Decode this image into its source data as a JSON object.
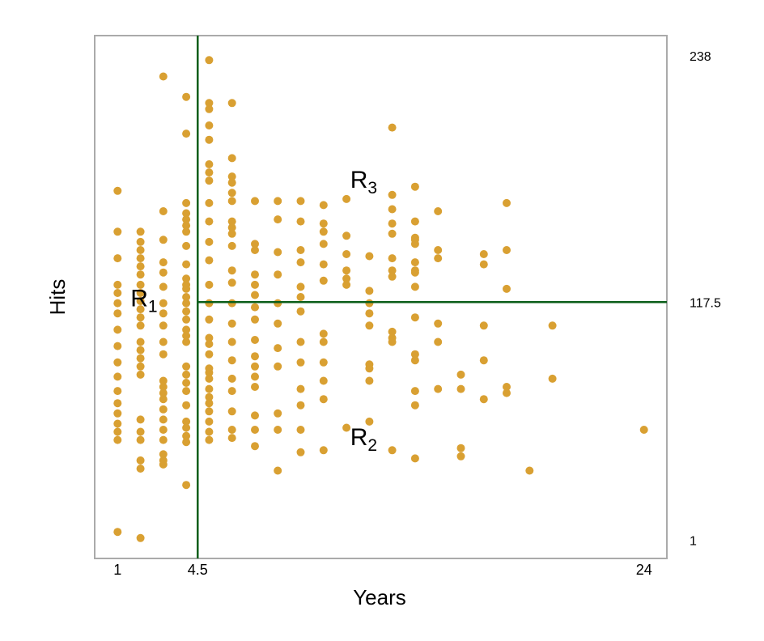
{
  "chart_data": {
    "type": "scatter",
    "xlabel": "Years",
    "ylabel": "Hits",
    "xlim": [
      0,
      25
    ],
    "ylim": [
      -8,
      248
    ],
    "x_ticks": [
      "1",
      "4.5",
      "24"
    ],
    "x_tick_values": [
      1,
      4.5,
      24
    ],
    "right_labels": [
      "238",
      "117.5",
      "1"
    ],
    "right_label_values": [
      238,
      117.5,
      1
    ],
    "splits": {
      "vertical": {
        "x": 4.5,
        "label": "4.5"
      },
      "horizontal": {
        "y": 117.5,
        "x_from": 4.5,
        "label": "117.5"
      }
    },
    "regions": [
      {
        "main": "R",
        "sub": "1",
        "x": 2.2,
        "y": 117
      },
      {
        "main": "R",
        "sub": "3",
        "x": 11.8,
        "y": 175
      },
      {
        "main": "R",
        "sub": "2",
        "x": 11.8,
        "y": 49
      }
    ],
    "colors": {
      "points": "#D9A032",
      "split_lines": "#0B5E1A",
      "frame": "#AAAAAA"
    },
    "points": [
      [
        1,
        172
      ],
      [
        1,
        152
      ],
      [
        1,
        139
      ],
      [
        1,
        126
      ],
      [
        1,
        122
      ],
      [
        1,
        117
      ],
      [
        1,
        112
      ],
      [
        1,
        104
      ],
      [
        1,
        96
      ],
      [
        1,
        88
      ],
      [
        1,
        81
      ],
      [
        1,
        74
      ],
      [
        1,
        68
      ],
      [
        1,
        63
      ],
      [
        1,
        58
      ],
      [
        1,
        54
      ],
      [
        1,
        50
      ],
      [
        1,
        5
      ],
      [
        2,
        152
      ],
      [
        2,
        147
      ],
      [
        2,
        143
      ],
      [
        2,
        139
      ],
      [
        2,
        135
      ],
      [
        2,
        131
      ],
      [
        2,
        126
      ],
      [
        2,
        122
      ],
      [
        2,
        118
      ],
      [
        2,
        114
      ],
      [
        2,
        110
      ],
      [
        2,
        106
      ],
      [
        2,
        98
      ],
      [
        2,
        94
      ],
      [
        2,
        90
      ],
      [
        2,
        86
      ],
      [
        2,
        82
      ],
      [
        2,
        60
      ],
      [
        2,
        54
      ],
      [
        2,
        50
      ],
      [
        2,
        40
      ],
      [
        2,
        36
      ],
      [
        2,
        2
      ],
      [
        3,
        228
      ],
      [
        3,
        162
      ],
      [
        3,
        148
      ],
      [
        3,
        137
      ],
      [
        3,
        132
      ],
      [
        3,
        125
      ],
      [
        3,
        117
      ],
      [
        3,
        112
      ],
      [
        3,
        106
      ],
      [
        3,
        98
      ],
      [
        3,
        92
      ],
      [
        3,
        79
      ],
      [
        3,
        76
      ],
      [
        3,
        73
      ],
      [
        3,
        70
      ],
      [
        3,
        65
      ],
      [
        3,
        60
      ],
      [
        3,
        55
      ],
      [
        3,
        50
      ],
      [
        3,
        43
      ],
      [
        3,
        40
      ],
      [
        3,
        38
      ],
      [
        4,
        218
      ],
      [
        4,
        200
      ],
      [
        4,
        166
      ],
      [
        4,
        161
      ],
      [
        4,
        158
      ],
      [
        4,
        155
      ],
      [
        4,
        152
      ],
      [
        4,
        145
      ],
      [
        4,
        136
      ],
      [
        4,
        129
      ],
      [
        4,
        126
      ],
      [
        4,
        124
      ],
      [
        4,
        120
      ],
      [
        4,
        117
      ],
      [
        4,
        113
      ],
      [
        4,
        109
      ],
      [
        4,
        104
      ],
      [
        4,
        101
      ],
      [
        4,
        98
      ],
      [
        4,
        86
      ],
      [
        4,
        82
      ],
      [
        4,
        78
      ],
      [
        4,
        74
      ],
      [
        4,
        67
      ],
      [
        4,
        59
      ],
      [
        4,
        56
      ],
      [
        4,
        52
      ],
      [
        4,
        49
      ],
      [
        4,
        28
      ],
      [
        5,
        236
      ],
      [
        5,
        215
      ],
      [
        5,
        212
      ],
      [
        5,
        204
      ],
      [
        5,
        197
      ],
      [
        5,
        185
      ],
      [
        5,
        181
      ],
      [
        5,
        177
      ],
      [
        5,
        166
      ],
      [
        5,
        157
      ],
      [
        5,
        147
      ],
      [
        5,
        138
      ],
      [
        5,
        126
      ],
      [
        5,
        117
      ],
      [
        5,
        109
      ],
      [
        5,
        100
      ],
      [
        5,
        97
      ],
      [
        5,
        92
      ],
      [
        5,
        85
      ],
      [
        5,
        83
      ],
      [
        5,
        80
      ],
      [
        5,
        75
      ],
      [
        5,
        71
      ],
      [
        5,
        68
      ],
      [
        5,
        64
      ],
      [
        5,
        59
      ],
      [
        5,
        54
      ],
      [
        5,
        50
      ],
      [
        6,
        215
      ],
      [
        6,
        188
      ],
      [
        6,
        179
      ],
      [
        6,
        176
      ],
      [
        6,
        171
      ],
      [
        6,
        167
      ],
      [
        6,
        157
      ],
      [
        6,
        154
      ],
      [
        6,
        151
      ],
      [
        6,
        145
      ],
      [
        6,
        133
      ],
      [
        6,
        127
      ],
      [
        6,
        117
      ],
      [
        6,
        107
      ],
      [
        6,
        98
      ],
      [
        6,
        89
      ],
      [
        6,
        80
      ],
      [
        6,
        74
      ],
      [
        6,
        64
      ],
      [
        6,
        55
      ],
      [
        6,
        51
      ],
      [
        7,
        167
      ],
      [
        7,
        146
      ],
      [
        7,
        143
      ],
      [
        7,
        131
      ],
      [
        7,
        126
      ],
      [
        7,
        121
      ],
      [
        7,
        115
      ],
      [
        7,
        109
      ],
      [
        7,
        99
      ],
      [
        7,
        91
      ],
      [
        7,
        86
      ],
      [
        7,
        81
      ],
      [
        7,
        76
      ],
      [
        7,
        62
      ],
      [
        7,
        55
      ],
      [
        7,
        47
      ],
      [
        8,
        167
      ],
      [
        8,
        158
      ],
      [
        8,
        142
      ],
      [
        8,
        131
      ],
      [
        8,
        117
      ],
      [
        8,
        107
      ],
      [
        8,
        95
      ],
      [
        8,
        86
      ],
      [
        8,
        63
      ],
      [
        8,
        55
      ],
      [
        8,
        35
      ],
      [
        9,
        167
      ],
      [
        9,
        157
      ],
      [
        9,
        143
      ],
      [
        9,
        137
      ],
      [
        9,
        125
      ],
      [
        9,
        120
      ],
      [
        9,
        113
      ],
      [
        9,
        98
      ],
      [
        9,
        88
      ],
      [
        9,
        75
      ],
      [
        9,
        67
      ],
      [
        9,
        55
      ],
      [
        9,
        44
      ],
      [
        10,
        165
      ],
      [
        10,
        156
      ],
      [
        10,
        152
      ],
      [
        10,
        146
      ],
      [
        10,
        136
      ],
      [
        10,
        128
      ],
      [
        10,
        102
      ],
      [
        10,
        98
      ],
      [
        10,
        88
      ],
      [
        10,
        79
      ],
      [
        10,
        70
      ],
      [
        10,
        45
      ],
      [
        11,
        168
      ],
      [
        11,
        150
      ],
      [
        11,
        141
      ],
      [
        11,
        133
      ],
      [
        11,
        129
      ],
      [
        11,
        126
      ],
      [
        11,
        56
      ],
      [
        12,
        140
      ],
      [
        12,
        123
      ],
      [
        12,
        117
      ],
      [
        12,
        112
      ],
      [
        12,
        106
      ],
      [
        12,
        87
      ],
      [
        12,
        85
      ],
      [
        12,
        79
      ],
      [
        12,
        59
      ],
      [
        13,
        203
      ],
      [
        13,
        170
      ],
      [
        13,
        163
      ],
      [
        13,
        156
      ],
      [
        13,
        151
      ],
      [
        13,
        139
      ],
      [
        13,
        133
      ],
      [
        13,
        130
      ],
      [
        13,
        103
      ],
      [
        13,
        100
      ],
      [
        13,
        98
      ],
      [
        13,
        45
      ],
      [
        14,
        174
      ],
      [
        14,
        157
      ],
      [
        14,
        149
      ],
      [
        14,
        146
      ],
      [
        14,
        148
      ],
      [
        14,
        137
      ],
      [
        14,
        133
      ],
      [
        14,
        132
      ],
      [
        14,
        125
      ],
      [
        14,
        110
      ],
      [
        14,
        92
      ],
      [
        14,
        89
      ],
      [
        14,
        74
      ],
      [
        14,
        67
      ],
      [
        14,
        41
      ],
      [
        15,
        162
      ],
      [
        15,
        143
      ],
      [
        15,
        139
      ],
      [
        15,
        107
      ],
      [
        15,
        98
      ],
      [
        15,
        75
      ],
      [
        16,
        82
      ],
      [
        16,
        75
      ],
      [
        16,
        46
      ],
      [
        16,
        42
      ],
      [
        17,
        141
      ],
      [
        17,
        136
      ],
      [
        17,
        106
      ],
      [
        17,
        89
      ],
      [
        17,
        70
      ],
      [
        18,
        166
      ],
      [
        18,
        143
      ],
      [
        18,
        124
      ],
      [
        18,
        76
      ],
      [
        18,
        73
      ],
      [
        19,
        35
      ],
      [
        20,
        106
      ],
      [
        20,
        80
      ],
      [
        24,
        55
      ]
    ]
  }
}
